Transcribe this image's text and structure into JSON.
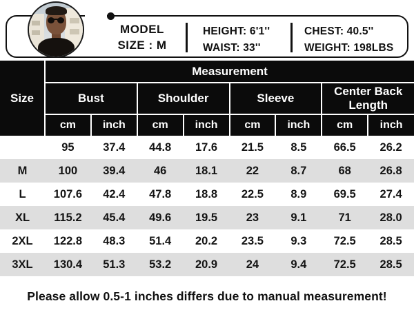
{
  "banner": {
    "model_title": "MODEL",
    "model_size": "SIZE : M",
    "height": "HEIGHT: 6'1''",
    "waist": "WAIST: 33''",
    "chest": "CHEST: 40.5''",
    "weight": "WEIGHT: 198LBS"
  },
  "size_chart": {
    "corner_header": "Size",
    "measurement_header": "Measurement",
    "groups": [
      "Bust",
      "Shoulder",
      "Sleeve",
      "Center Back Length"
    ],
    "units": [
      "cm",
      "inch",
      "cm",
      "inch",
      "cm",
      "inch",
      "cm",
      "inch"
    ],
    "rows": [
      {
        "size": "",
        "values": [
          "95",
          "37.4",
          "44.8",
          "17.6",
          "21.5",
          "8.5",
          "66.5",
          "26.2"
        ]
      },
      {
        "size": "M",
        "values": [
          "100",
          "39.4",
          "46",
          "18.1",
          "22",
          "8.7",
          "68",
          "26.8"
        ]
      },
      {
        "size": "L",
        "values": [
          "107.6",
          "42.4",
          "47.8",
          "18.8",
          "22.5",
          "8.9",
          "69.5",
          "27.4"
        ]
      },
      {
        "size": "XL",
        "values": [
          "115.2",
          "45.4",
          "49.6",
          "19.5",
          "23",
          "9.1",
          "71",
          "28.0"
        ]
      },
      {
        "size": "2XL",
        "values": [
          "122.8",
          "48.3",
          "51.4",
          "20.2",
          "23.5",
          "9.3",
          "72.5",
          "28.5"
        ]
      },
      {
        "size": "3XL",
        "values": [
          "130.4",
          "51.3",
          "53.2",
          "20.9",
          "24",
          "9.4",
          "72.5",
          "28.5"
        ]
      }
    ]
  },
  "footer": {
    "note": "Please allow 0.5-1 inches differs due to manual measurement!"
  },
  "colors": {
    "header_bg": "#0b0b0b",
    "row_alt_bg": "#dedede",
    "grid_line": "#ffffff",
    "text": "#111111"
  },
  "chart_data": {
    "type": "table",
    "title": "Measurement",
    "columns": [
      "Size",
      "Bust cm",
      "Bust inch",
      "Shoulder cm",
      "Shoulder inch",
      "Sleeve cm",
      "Sleeve inch",
      "Center Back Length cm",
      "Center Back Length inch"
    ],
    "rows": [
      [
        "",
        95,
        37.4,
        44.8,
        17.6,
        21.5,
        8.5,
        66.5,
        26.2
      ],
      [
        "M",
        100,
        39.4,
        46,
        18.1,
        22,
        8.7,
        68,
        26.8
      ],
      [
        "L",
        107.6,
        42.4,
        47.8,
        18.8,
        22.5,
        8.9,
        69.5,
        27.4
      ],
      [
        "XL",
        115.2,
        45.4,
        49.6,
        19.5,
        23,
        9.1,
        71,
        28.0
      ],
      [
        "2XL",
        122.8,
        48.3,
        51.4,
        20.2,
        23.5,
        9.3,
        72.5,
        28.5
      ],
      [
        "3XL",
        130.4,
        51.3,
        53.2,
        20.9,
        24,
        9.4,
        72.5,
        28.5
      ]
    ],
    "model_info": {
      "size": "M",
      "height": "6'1''",
      "waist": "33''",
      "chest": "40.5''",
      "weight": "198LBS"
    },
    "note": "Please allow 0.5-1 inches differs due to manual measurement!"
  }
}
